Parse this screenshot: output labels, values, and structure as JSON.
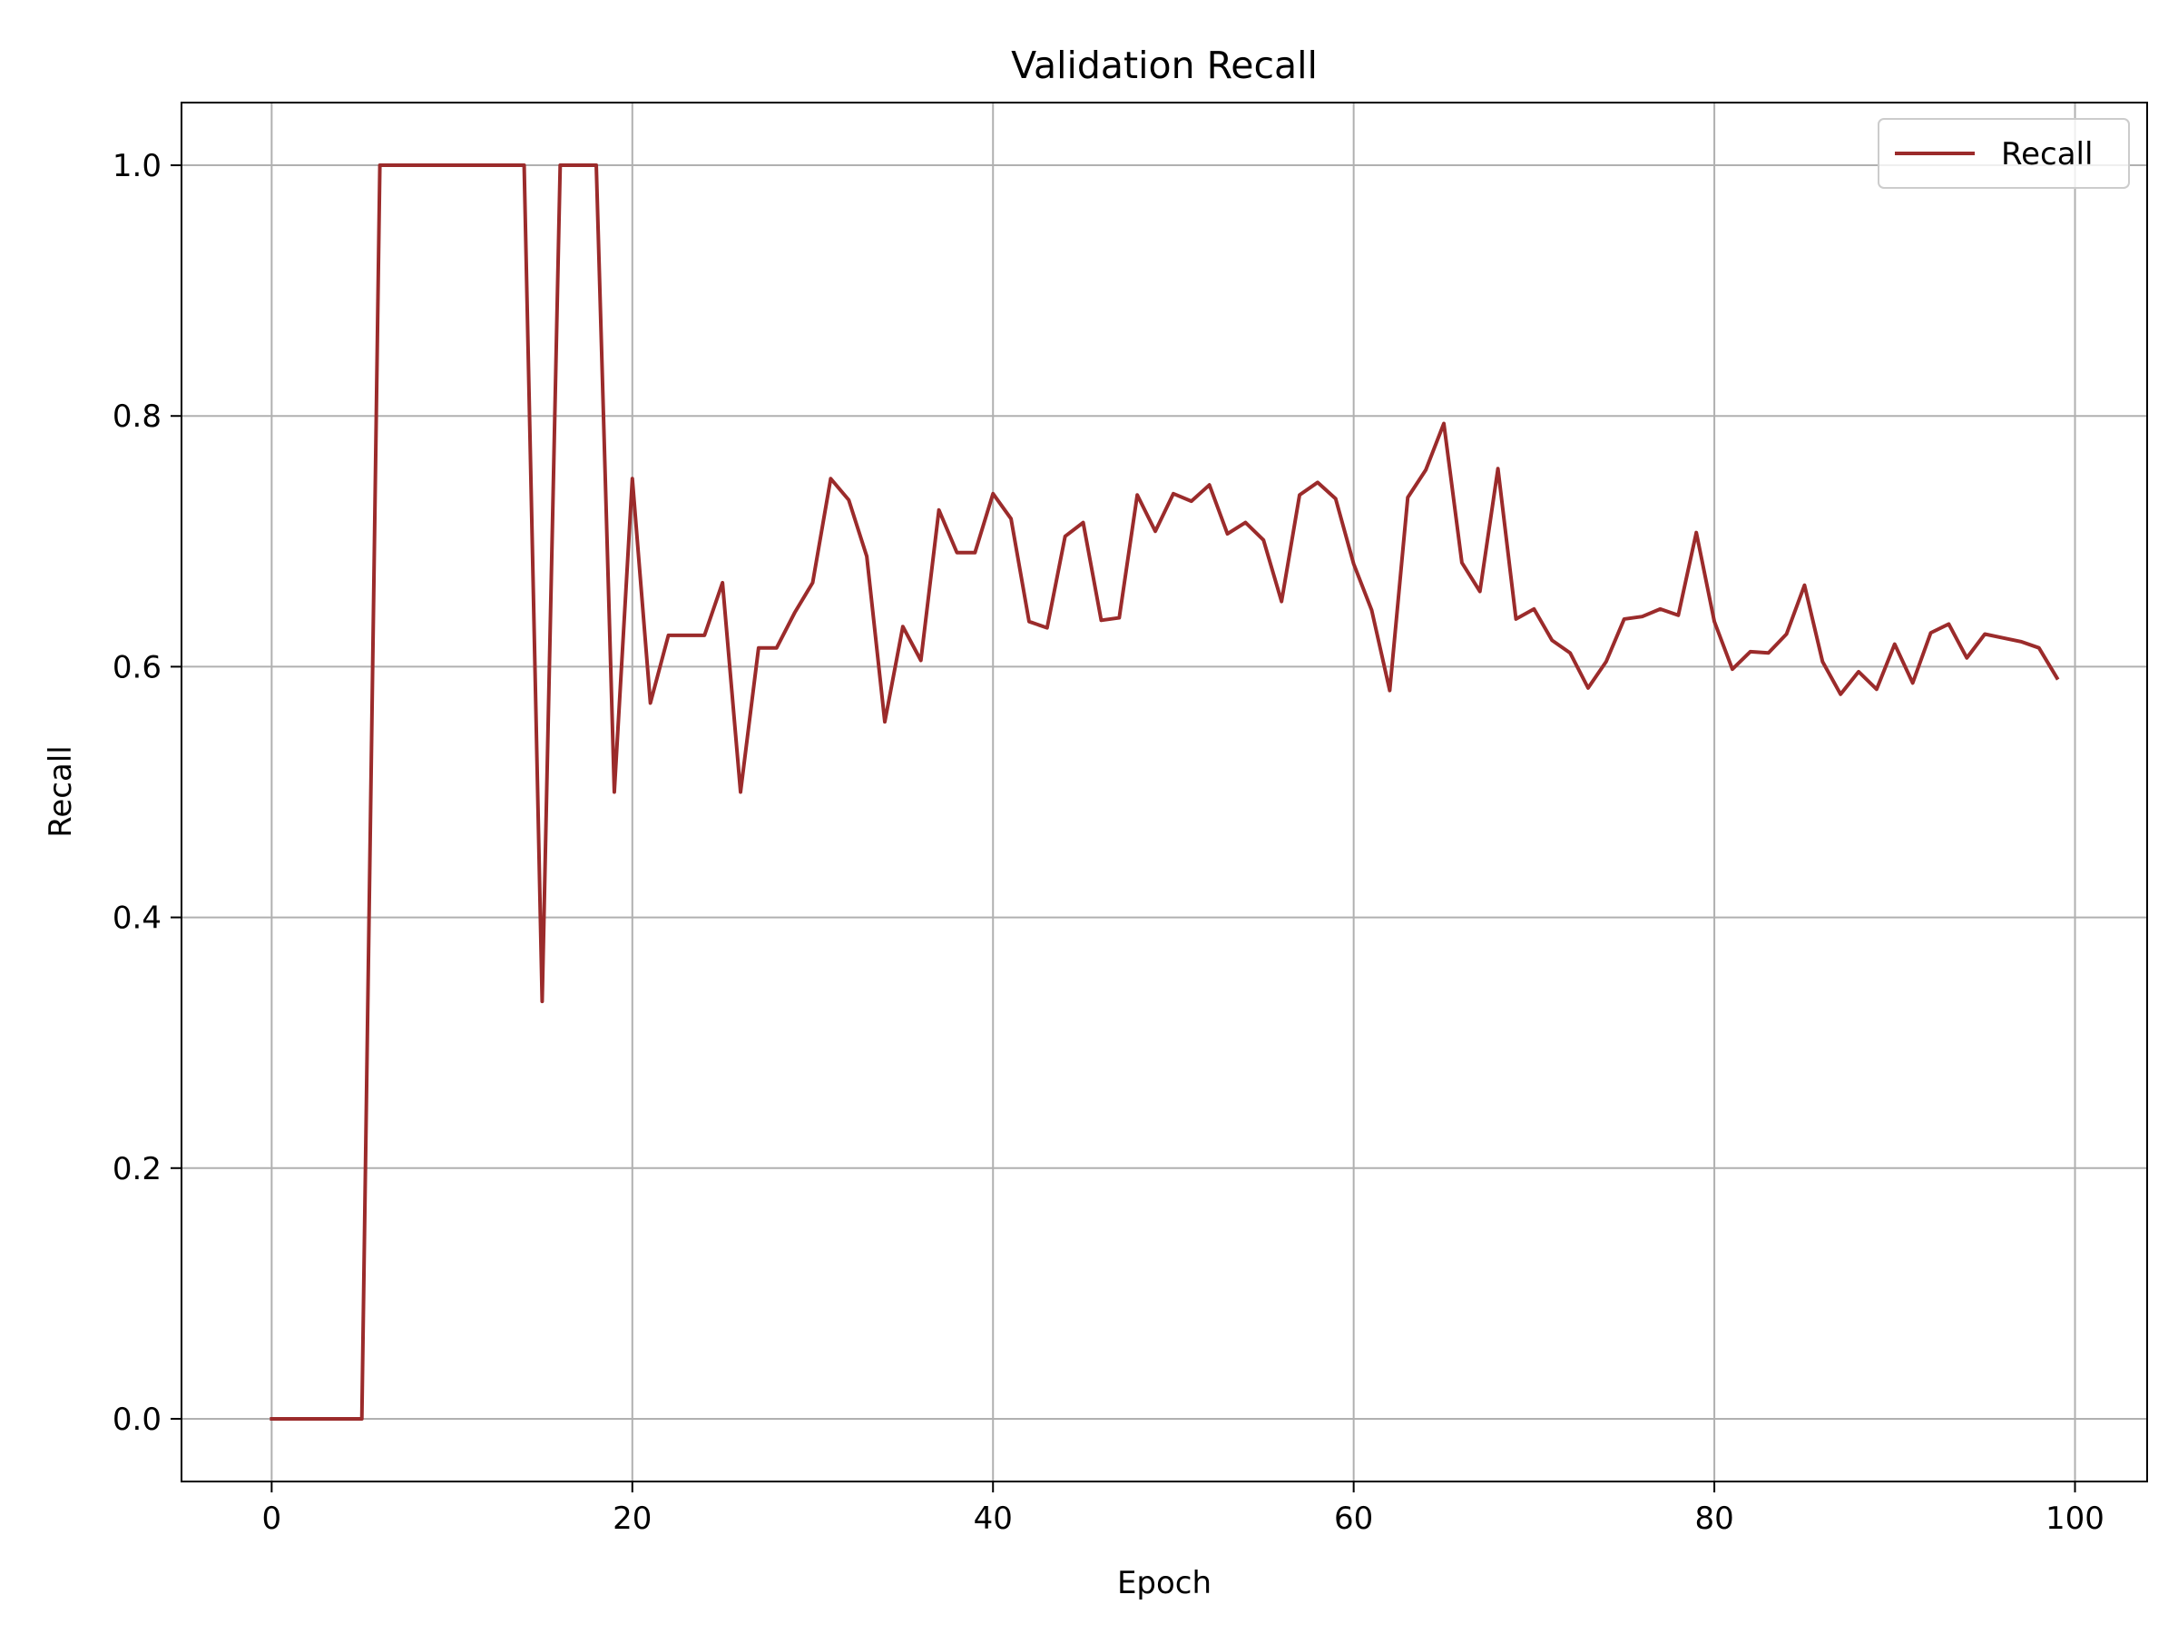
{
  "chart_data": {
    "type": "line",
    "title": "Validation Recall",
    "xlabel": "Epoch",
    "ylabel": "Recall",
    "xlim": [
      -5,
      104
    ],
    "ylim": [
      -0.05,
      1.05
    ],
    "xticks": [
      0,
      20,
      40,
      60,
      80,
      100
    ],
    "yticks": [
      0.0,
      0.2,
      0.4,
      0.6,
      0.8,
      1.0
    ],
    "xtick_labels": [
      "0",
      "20",
      "40",
      "60",
      "80",
      "100"
    ],
    "ytick_labels": [
      "0.0",
      "0.2",
      "0.4",
      "0.6",
      "0.8",
      "1.0"
    ],
    "grid": true,
    "legend_position": "top-right",
    "series": [
      {
        "name": "Recall",
        "color": "#9b2b2b",
        "x": [
          0,
          1,
          2,
          3,
          4,
          5,
          6,
          7,
          8,
          9,
          10,
          11,
          12,
          13,
          14,
          15,
          16,
          17,
          18,
          19,
          20,
          21,
          22,
          23,
          24,
          25,
          26,
          27,
          28,
          29,
          30,
          31,
          32,
          33,
          34,
          35,
          36,
          37,
          38,
          39,
          40,
          41,
          42,
          43,
          44,
          45,
          46,
          47,
          48,
          49,
          50,
          51,
          52,
          53,
          54,
          55,
          56,
          57,
          58,
          59,
          60,
          61,
          62,
          63,
          64,
          65,
          66,
          67,
          68,
          69,
          70,
          71,
          72,
          73,
          74,
          75,
          76,
          77,
          78,
          79,
          80,
          81,
          82,
          83,
          84,
          85,
          86,
          87,
          88,
          89,
          90,
          91,
          92,
          93,
          94,
          95,
          96,
          97,
          98,
          99
        ],
        "values": [
          0.0,
          0.0,
          0.0,
          0.0,
          0.0,
          0.0,
          1.0,
          1.0,
          1.0,
          1.0,
          1.0,
          1.0,
          1.0,
          1.0,
          1.0,
          0.333,
          1.0,
          1.0,
          1.0,
          0.5,
          0.75,
          0.571,
          0.625,
          0.625,
          0.625,
          0.667,
          0.5,
          0.615,
          0.615,
          0.643,
          0.667,
          0.75,
          0.733,
          0.688,
          0.556,
          0.632,
          0.605,
          0.725,
          0.691,
          0.691,
          0.738,
          0.718,
          0.636,
          0.631,
          0.704,
          0.715,
          0.637,
          0.639,
          0.737,
          0.708,
          0.738,
          0.732,
          0.745,
          0.706,
          0.715,
          0.701,
          0.652,
          0.737,
          0.747,
          0.734,
          0.682,
          0.645,
          0.581,
          0.735,
          0.757,
          0.794,
          0.683,
          0.66,
          0.758,
          0.638,
          0.646,
          0.621,
          0.611,
          0.583,
          0.604,
          0.638,
          0.64,
          0.646,
          0.641,
          0.707,
          0.636,
          0.598,
          0.612,
          0.611,
          0.626,
          0.665,
          0.604,
          0.578,
          0.596,
          0.582,
          0.618,
          0.587,
          0.627,
          0.634,
          0.607,
          0.626,
          0.623,
          0.62,
          0.615,
          0.591
        ]
      }
    ]
  }
}
